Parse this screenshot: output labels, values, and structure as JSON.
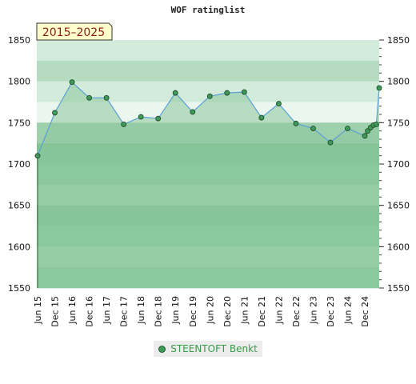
{
  "chart_data": {
    "type": "area",
    "title": "WOF ratinglist",
    "period": "2015–2025",
    "ylim": [
      1550,
      1850
    ],
    "y_ticks": [
      1550,
      1600,
      1650,
      1700,
      1750,
      1800,
      1850
    ],
    "x_ticks": [
      "Jun 15",
      "Dec 15",
      "Jun 16",
      "Dec 16",
      "Jun 17",
      "Dec 17",
      "Jun 18",
      "Dec 18",
      "Jun 19",
      "Dec 19",
      "Jun 20",
      "Dec 20",
      "Jun 21",
      "Dec 21",
      "Jun 22",
      "Dec 22",
      "Jun 23",
      "Dec 23",
      "Jun 24",
      "Dec 24"
    ],
    "series": [
      {
        "name": "STEENTOFT Benkt",
        "color": "#3f9a5a",
        "points": [
          [
            "2015-06",
            1710
          ],
          [
            "2015-12",
            1762
          ],
          [
            "2016-06",
            1799
          ],
          [
            "2016-12",
            1780
          ],
          [
            "2017-06",
            1780
          ],
          [
            "2017-12",
            1748
          ],
          [
            "2018-06",
            1757
          ],
          [
            "2018-12",
            1755
          ],
          [
            "2019-06",
            1786
          ],
          [
            "2019-12",
            1763
          ],
          [
            "2020-06",
            1782
          ],
          [
            "2020-12",
            1786
          ],
          [
            "2021-06",
            1787
          ],
          [
            "2021-12",
            1756
          ],
          [
            "2022-06",
            1773
          ],
          [
            "2022-12",
            1749
          ],
          [
            "2023-06",
            1743
          ],
          [
            "2023-12",
            1726
          ],
          [
            "2024-06",
            1743
          ],
          [
            "2024-12",
            1734
          ],
          [
            "2025-01",
            1740
          ],
          [
            "2025-02",
            1744
          ],
          [
            "2025-03",
            1747
          ],
          [
            "2025-04",
            1748
          ],
          [
            "2025-05",
            1792
          ]
        ]
      }
    ],
    "grid": true,
    "legend_position": "bottom",
    "background_bands": [
      "#d2ebda",
      "#b5dcc0",
      "#d2ebda",
      "#eaf6ee",
      "#9fd0ad",
      "#80c495",
      "#8dcb9f",
      "#a3d4b0",
      "#80c495",
      "#8dcb9f",
      "#a3d4b0",
      "#8dcb9f"
    ],
    "fill_color": "#8cc79c",
    "line_color": "#5b9fd6"
  }
}
